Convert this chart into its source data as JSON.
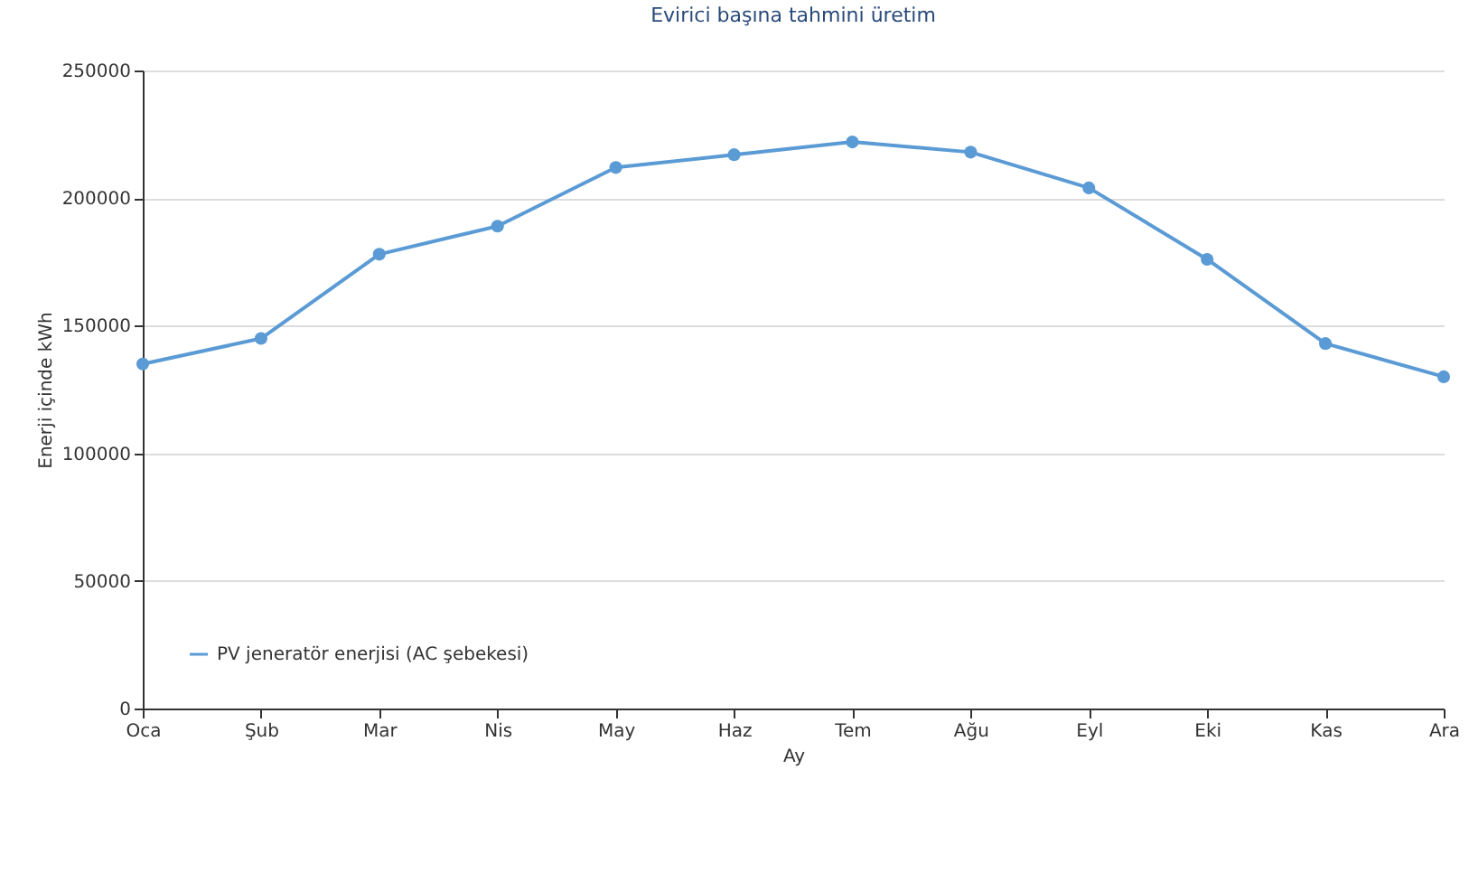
{
  "chart_data": {
    "type": "line",
    "title": "Evirici başına tahmini üretim",
    "xlabel": "Ay",
    "ylabel": "Enerji içinde kWh",
    "categories": [
      "Oca",
      "Şub",
      "Mar",
      "Nis",
      "May",
      "Haz",
      "Tem",
      "Ağu",
      "Eyl",
      "Eki",
      "Kas",
      "Ara"
    ],
    "series": [
      {
        "name": "PV jeneratör enerjisi (AC şebekesi)",
        "color": "#5b9bd5",
        "values": [
          135000,
          145000,
          178000,
          189000,
          212000,
          217000,
          222000,
          218000,
          204000,
          176000,
          143000,
          130000
        ]
      }
    ],
    "ylim": [
      0,
      250000
    ],
    "yticks": [
      0,
      50000,
      100000,
      150000,
      200000,
      250000
    ],
    "grid": "y",
    "legend": "bottom left",
    "marker": "circle",
    "line_style": "solid"
  }
}
